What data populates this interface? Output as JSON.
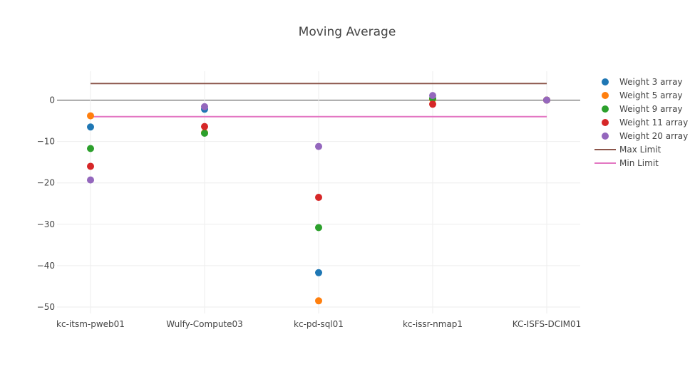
{
  "chart_data": {
    "type": "scatter",
    "title": "Moving Average",
    "xlabel": "",
    "ylabel": "",
    "categories": [
      "kc-itsm-pweb01",
      "Wulfy-Compute03",
      "kc-pd-sql01",
      "kc-issr-nmap1",
      "KC-ISFS-DCIM01"
    ],
    "ylim": [
      -52,
      7
    ],
    "yticks": [
      0,
      -10,
      -20,
      -30,
      -40,
      -50
    ],
    "ytick_labels": [
      "0",
      "−10",
      "−20",
      "−30",
      "−40",
      "−50"
    ],
    "grid": true,
    "legend_position": "right",
    "series": [
      {
        "name": "Weight 3 array",
        "color": "#1f77b4",
        "values": [
          -6.5,
          -2.2,
          -41.7,
          0.3,
          0
        ]
      },
      {
        "name": "Weight 5 array",
        "color": "#ff7f0e",
        "values": [
          -3.8,
          -7.9,
          -48.5,
          0.2,
          0
        ]
      },
      {
        "name": "Weight 9 array",
        "color": "#2ca02c",
        "values": [
          -11.7,
          -8.0,
          -30.8,
          0.4,
          0
        ]
      },
      {
        "name": "Weight 11 array",
        "color": "#d62728",
        "values": [
          -16.0,
          -6.4,
          -23.5,
          -1.0,
          0
        ]
      },
      {
        "name": "Weight 20 array",
        "color": "#9467bd",
        "values": [
          -19.3,
          -1.6,
          -11.2,
          1.1,
          0
        ]
      }
    ],
    "lines": [
      {
        "name": "Max Limit",
        "color": "#8c564b",
        "value": 4
      },
      {
        "name": "Min Limit",
        "color": "#e377c2",
        "value": -4
      }
    ]
  }
}
